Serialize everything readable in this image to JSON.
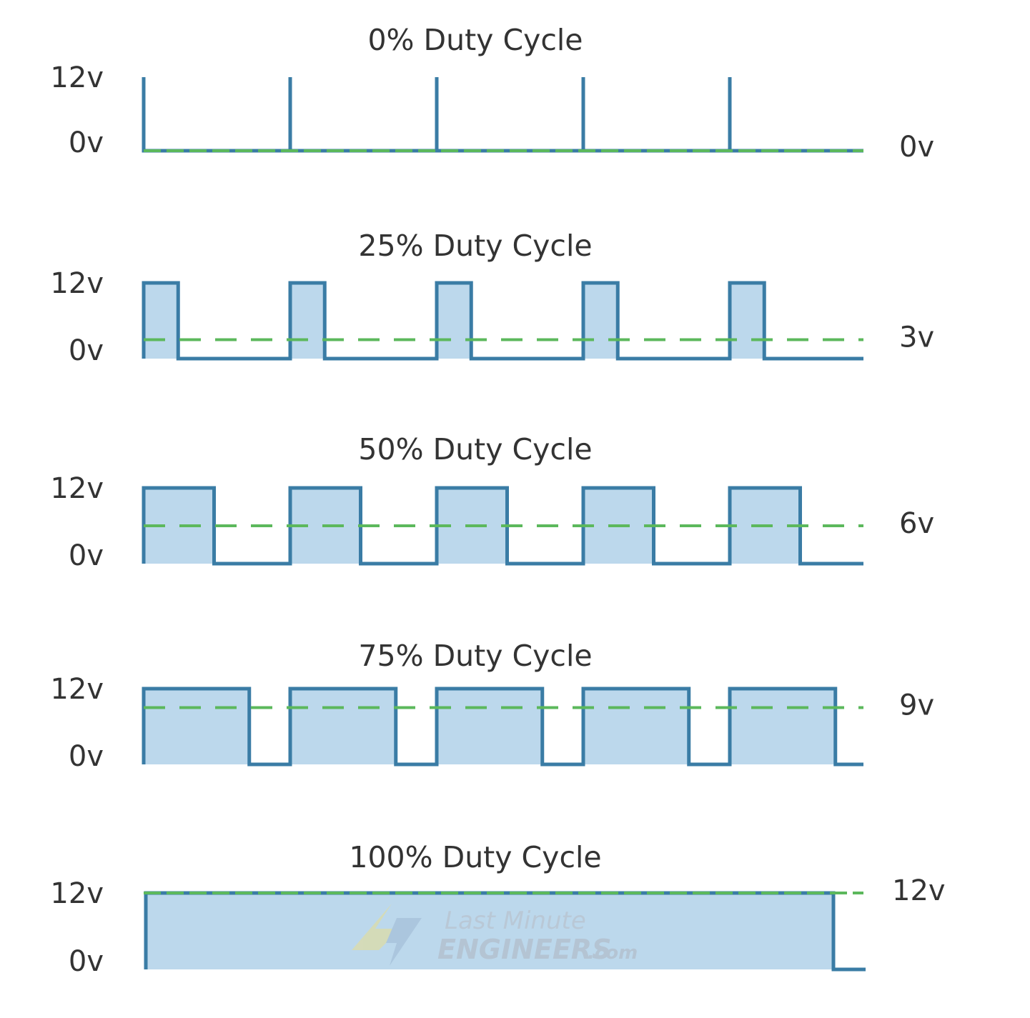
{
  "chart_data": [
    {
      "type": "line",
      "title": "0% Duty Cycle",
      "duty_cycle": 0,
      "y_high_label": "12v",
      "y_low_label": "0v",
      "average_label": "0v",
      "average_value": 0,
      "ylim": [
        0,
        12
      ],
      "cycles": 5
    },
    {
      "type": "line",
      "title": "25% Duty Cycle",
      "duty_cycle": 25,
      "y_high_label": "12v",
      "y_low_label": "0v",
      "average_label": "3v",
      "average_value": 3,
      "ylim": [
        0,
        12
      ],
      "cycles": 5
    },
    {
      "type": "line",
      "title": "50% Duty Cycle",
      "duty_cycle": 50,
      "y_high_label": "12v",
      "y_low_label": "0v",
      "average_label": "6v",
      "average_value": 6,
      "ylim": [
        0,
        12
      ],
      "cycles": 5
    },
    {
      "type": "line",
      "title": "75% Duty Cycle",
      "duty_cycle": 75,
      "y_high_label": "12v",
      "y_low_label": "0v",
      "average_label": "9v",
      "average_value": 9,
      "ylim": [
        0,
        12
      ],
      "cycles": 5
    },
    {
      "type": "line",
      "title": "100% Duty Cycle",
      "duty_cycle": 100,
      "y_high_label": "12v",
      "y_low_label": "0v",
      "average_label": "12v",
      "average_value": 12,
      "ylim": [
        0,
        12
      ],
      "cycles": 5
    }
  ],
  "colors": {
    "signal": "#3a7ca5",
    "fill": "#bcd8ec",
    "average": "#5cb85c",
    "text": "#333333"
  },
  "watermark": {
    "line1": "Last Minute",
    "line2": "ENGINEERS",
    "suffix": ".com"
  }
}
